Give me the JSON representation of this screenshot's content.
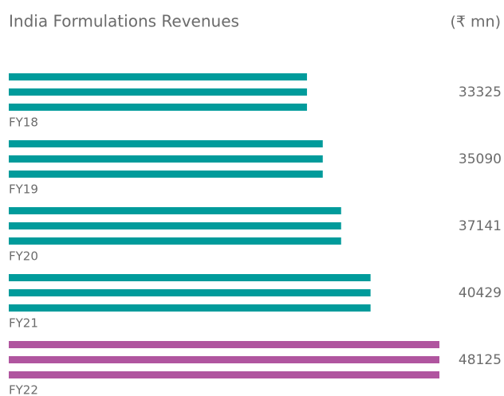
{
  "chart_data": {
    "type": "striped-hbar",
    "title": "India Formulations Revenues",
    "unit": "(₹ mn)",
    "categories": [
      "FY18",
      "FY19",
      "FY20",
      "FY21",
      "FY22"
    ],
    "values": [
      33325,
      35090,
      37141,
      40429,
      48125
    ],
    "colors": [
      "#009b9b",
      "#009b9b",
      "#009b9b",
      "#009b9b",
      "#b0559f"
    ]
  }
}
